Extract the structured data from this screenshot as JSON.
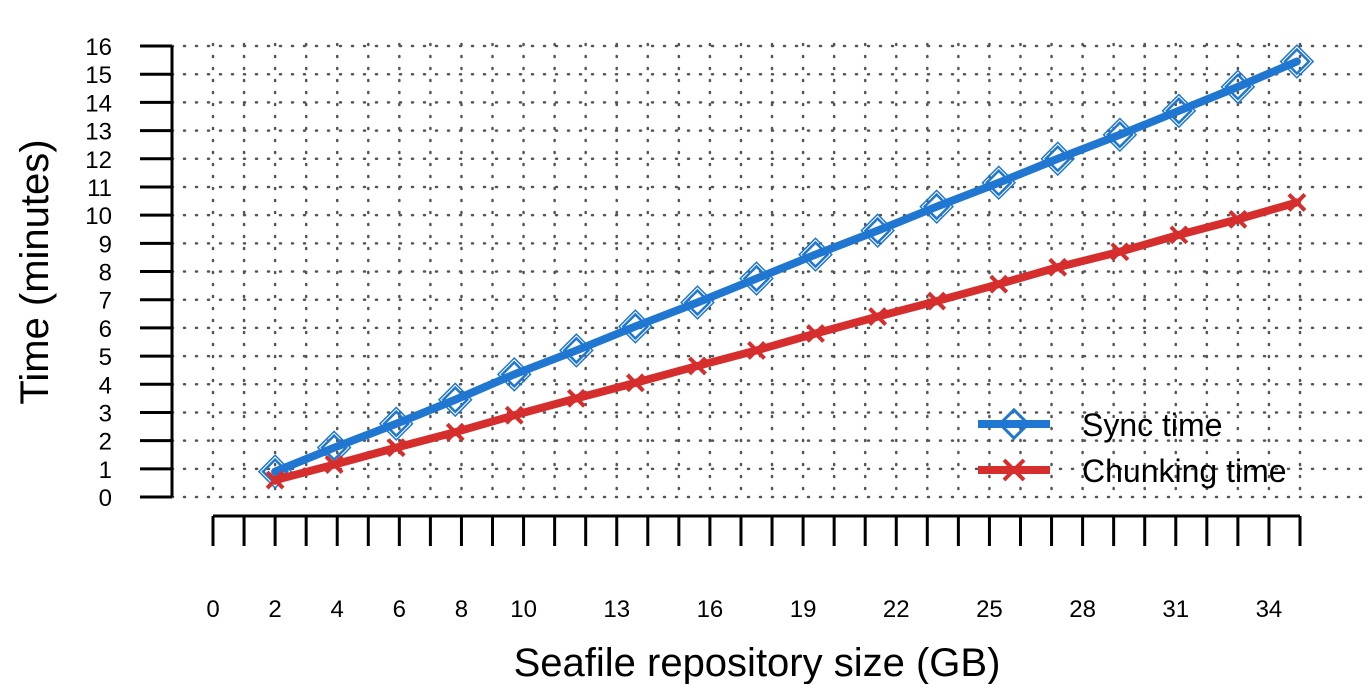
{
  "chart_data": {
    "type": "line",
    "xlabel": "Seafile repository size (GB)",
    "ylabel": "Time (minutes)",
    "ylim": [
      0,
      16
    ],
    "xlim": [
      0,
      35
    ],
    "y_ticks": [
      "0",
      "1",
      "2",
      "3",
      "4",
      "5",
      "6",
      "7",
      "8",
      "9",
      "10",
      "11",
      "12",
      "13",
      "14",
      "15",
      "16"
    ],
    "x_tick_labels": [
      "0",
      "2",
      "4",
      "6",
      "8",
      "10",
      "13",
      "16",
      "19",
      "22",
      "25",
      "28",
      "31",
      "34"
    ],
    "x_tick_values": [
      0,
      2,
      4,
      6,
      8,
      10,
      13,
      16,
      19,
      22,
      25,
      28,
      31,
      34
    ],
    "x_tick_count": 36,
    "grid": true,
    "legend_position": "bottom-right",
    "x": [
      2,
      3.9,
      5.9,
      7.8,
      9.7,
      11.7,
      13.6,
      15.6,
      17.5,
      19.4,
      21.4,
      23.3,
      25.3,
      27.2,
      29.2,
      31.1,
      33.0,
      34.9
    ],
    "series": [
      {
        "name": "Sync time",
        "color": "#1f77d2",
        "marker": "diamond",
        "values": [
          0.9,
          1.75,
          2.6,
          3.45,
          4.35,
          5.2,
          6.05,
          6.9,
          7.75,
          8.6,
          9.45,
          10.3,
          11.15,
          12.0,
          12.85,
          13.7,
          14.55,
          15.45
        ]
      },
      {
        "name": "Chunking time",
        "color": "#d62d2d",
        "marker": "x",
        "values": [
          0.6,
          1.15,
          1.75,
          2.3,
          2.9,
          3.5,
          4.05,
          4.65,
          5.2,
          5.8,
          6.4,
          6.95,
          7.55,
          8.15,
          8.7,
          9.3,
          9.85,
          10.45
        ]
      }
    ]
  }
}
